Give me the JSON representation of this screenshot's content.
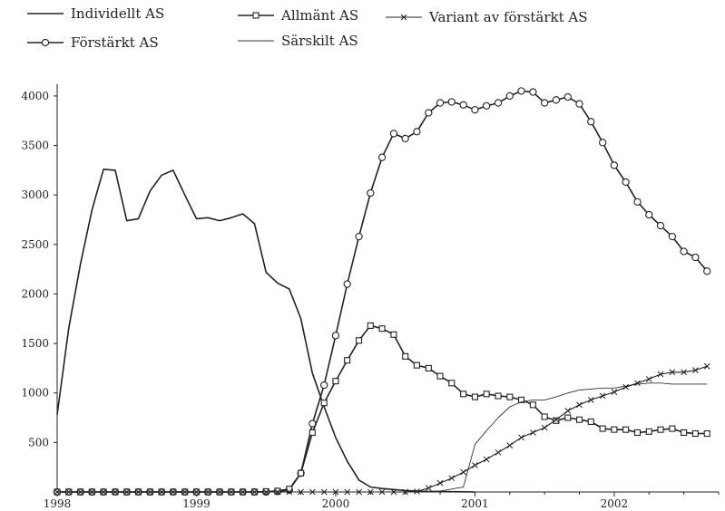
{
  "chart_data": {
    "type": "line",
    "title": "",
    "xlabel": "",
    "ylabel": "",
    "xlim": [
      1998.0,
      2002.75
    ],
    "ylim": [
      0,
      4100
    ],
    "x_ticks": [
      {
        "value": 1998,
        "label": "1998"
      },
      {
        "value": 1999,
        "label": "1999"
      },
      {
        "value": 2000,
        "label": "2000"
      },
      {
        "value": 2001,
        "label": "2001"
      },
      {
        "value": 2002,
        "label": "2002"
      }
    ],
    "y_ticks": [
      {
        "value": 500,
        "label": "500"
      },
      {
        "value": 1000,
        "label": "1000"
      },
      {
        "value": 1500,
        "label": "1500"
      },
      {
        "value": 2000,
        "label": "2000"
      },
      {
        "value": 2500,
        "label": "2500"
      },
      {
        "value": 3000,
        "label": "3000"
      },
      {
        "value": 3500,
        "label": "3500"
      },
      {
        "value": 4000,
        "label": "4000"
      }
    ],
    "grid": false,
    "legend_position": "top",
    "series": [
      {
        "name": "Individellt AS",
        "marker": "none",
        "stroke_width": 1.6,
        "color": "#222222",
        "points": [
          [
            1998.0,
            780
          ],
          [
            1998.083,
            1650
          ],
          [
            1998.167,
            2300
          ],
          [
            1998.25,
            2850
          ],
          [
            1998.333,
            3260
          ],
          [
            1998.417,
            3250
          ],
          [
            1998.5,
            2740
          ],
          [
            1998.583,
            2760
          ],
          [
            1998.667,
            3040
          ],
          [
            1998.75,
            3200
          ],
          [
            1998.833,
            3250
          ],
          [
            1998.917,
            3000
          ],
          [
            1999.0,
            2760
          ],
          [
            1999.083,
            2770
          ],
          [
            1999.167,
            2740
          ],
          [
            1999.25,
            2770
          ],
          [
            1999.333,
            2810
          ],
          [
            1999.417,
            2710
          ],
          [
            1999.5,
            2220
          ],
          [
            1999.583,
            2110
          ],
          [
            1999.667,
            2050
          ],
          [
            1999.75,
            1750
          ],
          [
            1999.833,
            1200
          ],
          [
            1999.917,
            860
          ],
          [
            2000.0,
            550
          ],
          [
            2000.083,
            310
          ],
          [
            2000.167,
            120
          ],
          [
            2000.25,
            50
          ],
          [
            2000.333,
            35
          ],
          [
            2000.417,
            25
          ],
          [
            2000.5,
            15
          ],
          [
            2000.583,
            10
          ],
          [
            2000.667,
            5
          ],
          [
            2000.75,
            5
          ],
          [
            2000.833,
            3
          ],
          [
            2000.917,
            2
          ],
          [
            2001.0,
            0
          ]
        ]
      },
      {
        "name": "Förstärkt AS",
        "marker": "circle",
        "stroke_width": 1.6,
        "color": "#222222",
        "points": [
          [
            1998.0,
            0
          ],
          [
            1998.083,
            0
          ],
          [
            1998.167,
            0
          ],
          [
            1998.25,
            0
          ],
          [
            1998.333,
            0
          ],
          [
            1998.417,
            0
          ],
          [
            1998.5,
            0
          ],
          [
            1998.583,
            0
          ],
          [
            1998.667,
            0
          ],
          [
            1998.75,
            0
          ],
          [
            1998.833,
            0
          ],
          [
            1998.917,
            0
          ],
          [
            1999.0,
            0
          ],
          [
            1999.083,
            0
          ],
          [
            1999.167,
            0
          ],
          [
            1999.25,
            0
          ],
          [
            1999.333,
            0
          ],
          [
            1999.417,
            0
          ],
          [
            1999.5,
            0
          ],
          [
            1999.583,
            5
          ],
          [
            1999.667,
            20
          ],
          [
            1999.75,
            190
          ],
          [
            1999.833,
            690
          ],
          [
            1999.917,
            1080
          ],
          [
            2000.0,
            1580
          ],
          [
            2000.083,
            2100
          ],
          [
            2000.167,
            2580
          ],
          [
            2000.25,
            3020
          ],
          [
            2000.333,
            3380
          ],
          [
            2000.417,
            3620
          ],
          [
            2000.5,
            3570
          ],
          [
            2000.583,
            3640
          ],
          [
            2000.667,
            3830
          ],
          [
            2000.75,
            3930
          ],
          [
            2000.833,
            3940
          ],
          [
            2000.917,
            3910
          ],
          [
            2001.0,
            3860
          ],
          [
            2001.083,
            3900
          ],
          [
            2001.167,
            3930
          ],
          [
            2001.25,
            4000
          ],
          [
            2001.333,
            4050
          ],
          [
            2001.417,
            4040
          ],
          [
            2001.5,
            3930
          ],
          [
            2001.583,
            3960
          ],
          [
            2001.667,
            3990
          ],
          [
            2001.75,
            3920
          ],
          [
            2001.833,
            3740
          ],
          [
            2001.917,
            3530
          ],
          [
            2002.0,
            3300
          ],
          [
            2002.083,
            3130
          ],
          [
            2002.167,
            2930
          ],
          [
            2002.25,
            2800
          ],
          [
            2002.333,
            2690
          ],
          [
            2002.417,
            2580
          ],
          [
            2002.5,
            2430
          ],
          [
            2002.583,
            2370
          ],
          [
            2002.667,
            2230
          ]
        ]
      },
      {
        "name": "Allmänt AS",
        "marker": "square",
        "stroke_width": 1.6,
        "color": "#222222",
        "points": [
          [
            1998.0,
            0
          ],
          [
            1998.083,
            0
          ],
          [
            1998.167,
            0
          ],
          [
            1998.25,
            0
          ],
          [
            1998.333,
            0
          ],
          [
            1998.417,
            0
          ],
          [
            1998.5,
            0
          ],
          [
            1998.583,
            0
          ],
          [
            1998.667,
            0
          ],
          [
            1998.75,
            0
          ],
          [
            1998.833,
            0
          ],
          [
            1998.917,
            0
          ],
          [
            1999.0,
            0
          ],
          [
            1999.083,
            0
          ],
          [
            1999.167,
            0
          ],
          [
            1999.25,
            0
          ],
          [
            1999.333,
            0
          ],
          [
            1999.417,
            0
          ],
          [
            1999.5,
            5
          ],
          [
            1999.583,
            10
          ],
          [
            1999.667,
            30
          ],
          [
            1999.75,
            190
          ],
          [
            1999.833,
            600
          ],
          [
            1999.917,
            900
          ],
          [
            2000.0,
            1120
          ],
          [
            2000.083,
            1330
          ],
          [
            2000.167,
            1530
          ],
          [
            2000.25,
            1680
          ],
          [
            2000.333,
            1650
          ],
          [
            2000.417,
            1590
          ],
          [
            2000.5,
            1370
          ],
          [
            2000.583,
            1280
          ],
          [
            2000.667,
            1250
          ],
          [
            2000.75,
            1170
          ],
          [
            2000.833,
            1100
          ],
          [
            2000.917,
            990
          ],
          [
            2001.0,
            960
          ],
          [
            2001.083,
            990
          ],
          [
            2001.167,
            970
          ],
          [
            2001.25,
            960
          ],
          [
            2001.333,
            930
          ],
          [
            2001.417,
            880
          ],
          [
            2001.5,
            760
          ],
          [
            2001.583,
            720
          ],
          [
            2001.667,
            750
          ],
          [
            2001.75,
            730
          ],
          [
            2001.833,
            710
          ],
          [
            2001.917,
            640
          ],
          [
            2002.0,
            630
          ],
          [
            2002.083,
            630
          ],
          [
            2002.167,
            600
          ],
          [
            2002.25,
            610
          ],
          [
            2002.333,
            630
          ],
          [
            2002.417,
            640
          ],
          [
            2002.5,
            600
          ],
          [
            2002.583,
            590
          ],
          [
            2002.667,
            590
          ]
        ]
      },
      {
        "name": "Särskilt AS",
        "marker": "none",
        "stroke_width": 0.9,
        "color": "#333333",
        "points": [
          [
            1998.0,
            0
          ],
          [
            1998.5,
            0
          ],
          [
            1999.0,
            0
          ],
          [
            1999.5,
            0
          ],
          [
            2000.0,
            0
          ],
          [
            2000.5,
            0
          ],
          [
            2000.75,
            10
          ],
          [
            2000.917,
            50
          ],
          [
            2001.0,
            480
          ],
          [
            2001.083,
            620
          ],
          [
            2001.167,
            750
          ],
          [
            2001.25,
            860
          ],
          [
            2001.333,
            910
          ],
          [
            2001.417,
            930
          ],
          [
            2001.5,
            930
          ],
          [
            2001.583,
            960
          ],
          [
            2001.667,
            1000
          ],
          [
            2001.75,
            1030
          ],
          [
            2001.833,
            1040
          ],
          [
            2001.917,
            1050
          ],
          [
            2002.0,
            1050
          ],
          [
            2002.083,
            1070
          ],
          [
            2002.167,
            1090
          ],
          [
            2002.25,
            1100
          ],
          [
            2002.333,
            1100
          ],
          [
            2002.417,
            1090
          ],
          [
            2002.5,
            1090
          ],
          [
            2002.583,
            1090
          ],
          [
            2002.667,
            1090
          ]
        ]
      },
      {
        "name": "Variant av förstärkt AS",
        "marker": "cross",
        "stroke_width": 1.1,
        "color": "#222222",
        "points": [
          [
            1998.0,
            0
          ],
          [
            1998.083,
            0
          ],
          [
            1998.167,
            0
          ],
          [
            1998.25,
            0
          ],
          [
            1998.333,
            0
          ],
          [
            1998.417,
            0
          ],
          [
            1998.5,
            0
          ],
          [
            1998.583,
            0
          ],
          [
            1998.667,
            0
          ],
          [
            1998.75,
            0
          ],
          [
            1998.833,
            0
          ],
          [
            1998.917,
            0
          ],
          [
            1999.0,
            0
          ],
          [
            1999.083,
            0
          ],
          [
            1999.167,
            0
          ],
          [
            1999.25,
            0
          ],
          [
            1999.333,
            0
          ],
          [
            1999.417,
            0
          ],
          [
            1999.5,
            0
          ],
          [
            1999.583,
            0
          ],
          [
            1999.667,
            0
          ],
          [
            1999.75,
            0
          ],
          [
            1999.833,
            0
          ],
          [
            1999.917,
            0
          ],
          [
            2000.0,
            0
          ],
          [
            2000.083,
            0
          ],
          [
            2000.167,
            0
          ],
          [
            2000.25,
            0
          ],
          [
            2000.333,
            0
          ],
          [
            2000.417,
            0
          ],
          [
            2000.5,
            0
          ],
          [
            2000.583,
            5
          ],
          [
            2000.667,
            40
          ],
          [
            2000.75,
            90
          ],
          [
            2000.833,
            140
          ],
          [
            2000.917,
            200
          ],
          [
            2001.0,
            270
          ],
          [
            2001.083,
            330
          ],
          [
            2001.167,
            400
          ],
          [
            2001.25,
            470
          ],
          [
            2001.333,
            550
          ],
          [
            2001.417,
            600
          ],
          [
            2001.5,
            650
          ],
          [
            2001.583,
            730
          ],
          [
            2001.667,
            820
          ],
          [
            2001.75,
            880
          ],
          [
            2001.833,
            930
          ],
          [
            2001.917,
            970
          ],
          [
            2002.0,
            1010
          ],
          [
            2002.083,
            1060
          ],
          [
            2002.167,
            1100
          ],
          [
            2002.25,
            1140
          ],
          [
            2002.333,
            1190
          ],
          [
            2002.417,
            1210
          ],
          [
            2002.5,
            1210
          ],
          [
            2002.583,
            1230
          ],
          [
            2002.667,
            1270
          ]
        ]
      }
    ]
  }
}
